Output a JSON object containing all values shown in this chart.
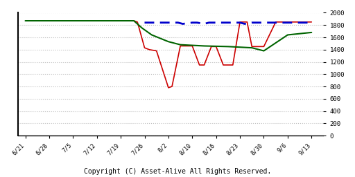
{
  "xlabels": [
    "6/21",
    "6/28",
    "7/5",
    "7/12",
    "7/19",
    "7/26",
    "8/2",
    "8/10",
    "8/16",
    "8/23",
    "8/30",
    "9/6",
    "9/13"
  ],
  "x_positions": [
    0,
    1,
    2,
    3,
    4,
    5,
    6,
    7,
    8,
    9,
    10,
    11,
    12
  ],
  "ylim": [
    0,
    2000
  ],
  "yticks": [
    0,
    200,
    400,
    600,
    800,
    1000,
    1200,
    1400,
    1600,
    1800,
    2000
  ],
  "grid_color": "#bbbbbb",
  "bg_color": "#ffffff",
  "copyright": "Copyright (C) Asset-Alive All Rights Reserved.",
  "green_x": [
    0,
    1,
    2,
    3,
    4,
    4.55,
    4.9,
    5.3,
    6.0,
    6.5,
    7.0,
    7.5,
    8.0,
    8.5,
    9.0,
    9.5,
    10.0,
    11.0,
    12.0
  ],
  "green_y": [
    1870,
    1870,
    1870,
    1870,
    1870,
    1870,
    1750,
    1640,
    1530,
    1480,
    1470,
    1460,
    1455,
    1450,
    1440,
    1430,
    1380,
    1640,
    1680
  ],
  "red_x": [
    4.4,
    4.55,
    4.7,
    5.0,
    5.2,
    5.5,
    6.0,
    6.15,
    6.5,
    7.0,
    7.3,
    7.5,
    7.8,
    8.0,
    8.3,
    8.7,
    9.0,
    9.3,
    9.5,
    10.0,
    10.5,
    11.0,
    12.0
  ],
  "red_y": [
    1870,
    1870,
    1850,
    1430,
    1400,
    1380,
    780,
    800,
    1460,
    1460,
    1150,
    1150,
    1450,
    1450,
    1150,
    1150,
    1850,
    1850,
    1450,
    1450,
    1850,
    1850,
    1850
  ],
  "blue_x": [
    5.0,
    5.5,
    6.0,
    6.4,
    6.6,
    7.0,
    7.2,
    7.5,
    7.7,
    8.0,
    8.5,
    9.0,
    9.2,
    9.5,
    10.0,
    10.5,
    11.0,
    11.5,
    12.0
  ],
  "blue_y": [
    1840,
    1840,
    1840,
    1840,
    1820,
    1840,
    1840,
    1820,
    1840,
    1840,
    1840,
    1840,
    1820,
    1840,
    1840,
    1840,
    1840,
    1840,
    1840
  ],
  "green_color": "#006400",
  "red_color": "#cc0000",
  "blue_color": "#0000cc",
  "blue_linewidth": 2.0,
  "green_linewidth": 1.5,
  "red_linewidth": 1.2
}
